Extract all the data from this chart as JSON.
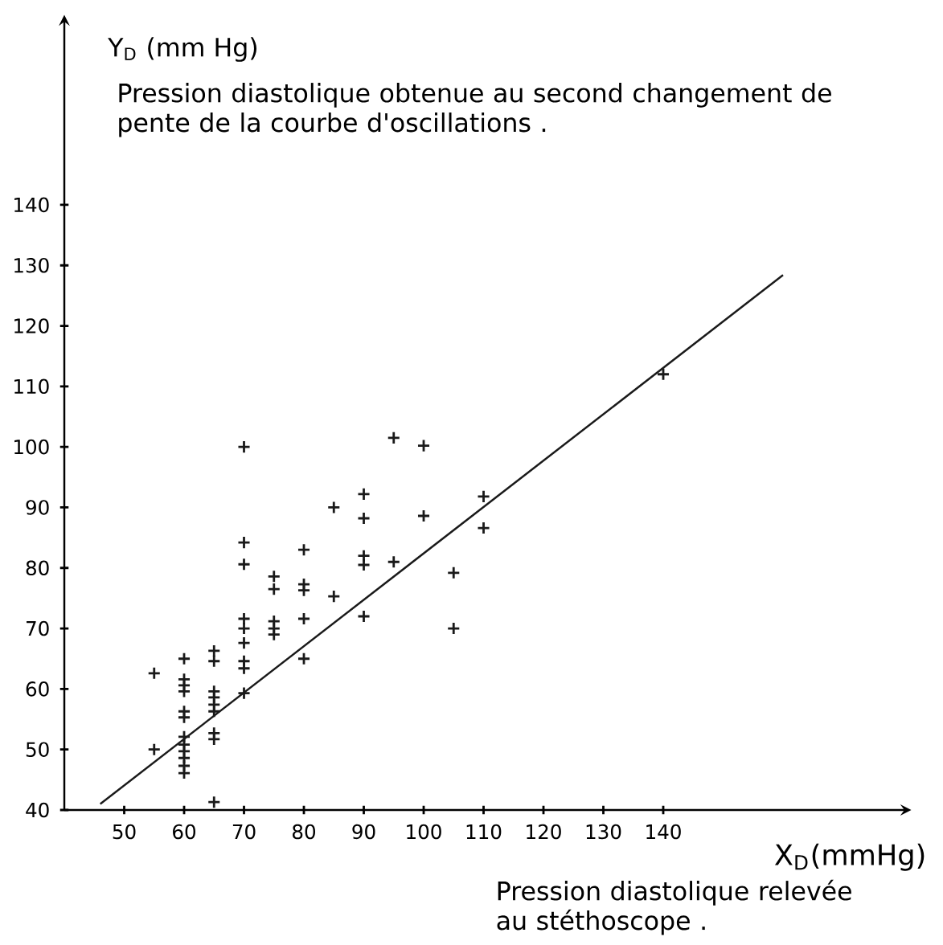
{
  "chart_data": {
    "type": "scatter",
    "ylabel": "Y$_{D}$ (mm Hg)",
    "xlabel": "X$_{D}$(mmHg)",
    "annotations": [
      "Pression diastolique obtenue au second changement de pente de la courbe d'oscillations .",
      "Pression diastolique relevée au stéthoscope ."
    ],
    "xlim": [
      40,
      180
    ],
    "ylim": [
      40,
      170
    ],
    "xticks": [
      50,
      60,
      70,
      80,
      90,
      100,
      110,
      120,
      130,
      140
    ],
    "yticks": [
      40,
      50,
      60,
      70,
      80,
      90,
      100,
      110,
      120,
      130,
      140
    ],
    "series": [
      {
        "color": "#1a1a1a",
        "marker": "cross",
        "x": [
          55,
          55,
          60,
          60,
          60,
          60,
          60,
          60,
          60,
          60,
          60,
          60,
          60,
          60,
          65,
          65,
          65,
          65,
          65,
          65,
          65,
          65,
          65,
          70,
          70,
          70,
          70,
          70,
          70,
          70,
          70,
          70,
          75,
          75,
          75,
          75,
          75,
          80,
          80,
          80,
          80,
          80,
          85,
          85,
          90,
          90,
          90,
          90,
          90,
          95,
          95,
          100,
          100,
          105,
          105,
          110,
          110,
          140
        ],
        "values": [
          62.6,
          50,
          65,
          61.6,
          60.6,
          59.6,
          56.3,
          55.3,
          52.1,
          50.8,
          49.7,
          48.6,
          47.3,
          46.1,
          66.3,
          64.6,
          59.6,
          58.6,
          57.4,
          56.3,
          52.7,
          51.7,
          41.3,
          100,
          84.2,
          80.6,
          71.6,
          70,
          67.6,
          64.6,
          63.4,
          59.3,
          78.6,
          76.5,
          71.2,
          70,
          69,
          83,
          77.3,
          76.3,
          71.6,
          65,
          90,
          75.3,
          92.2,
          88.2,
          82,
          80.5,
          72,
          101.5,
          81,
          100.2,
          88.6,
          79.2,
          70,
          91.8,
          86.6,
          112
        ]
      },
      {
        "type": "line",
        "color": "#1a1a1a",
        "x": [
          46,
          160
        ],
        "values": [
          41,
          128.4
        ]
      }
    ]
  }
}
